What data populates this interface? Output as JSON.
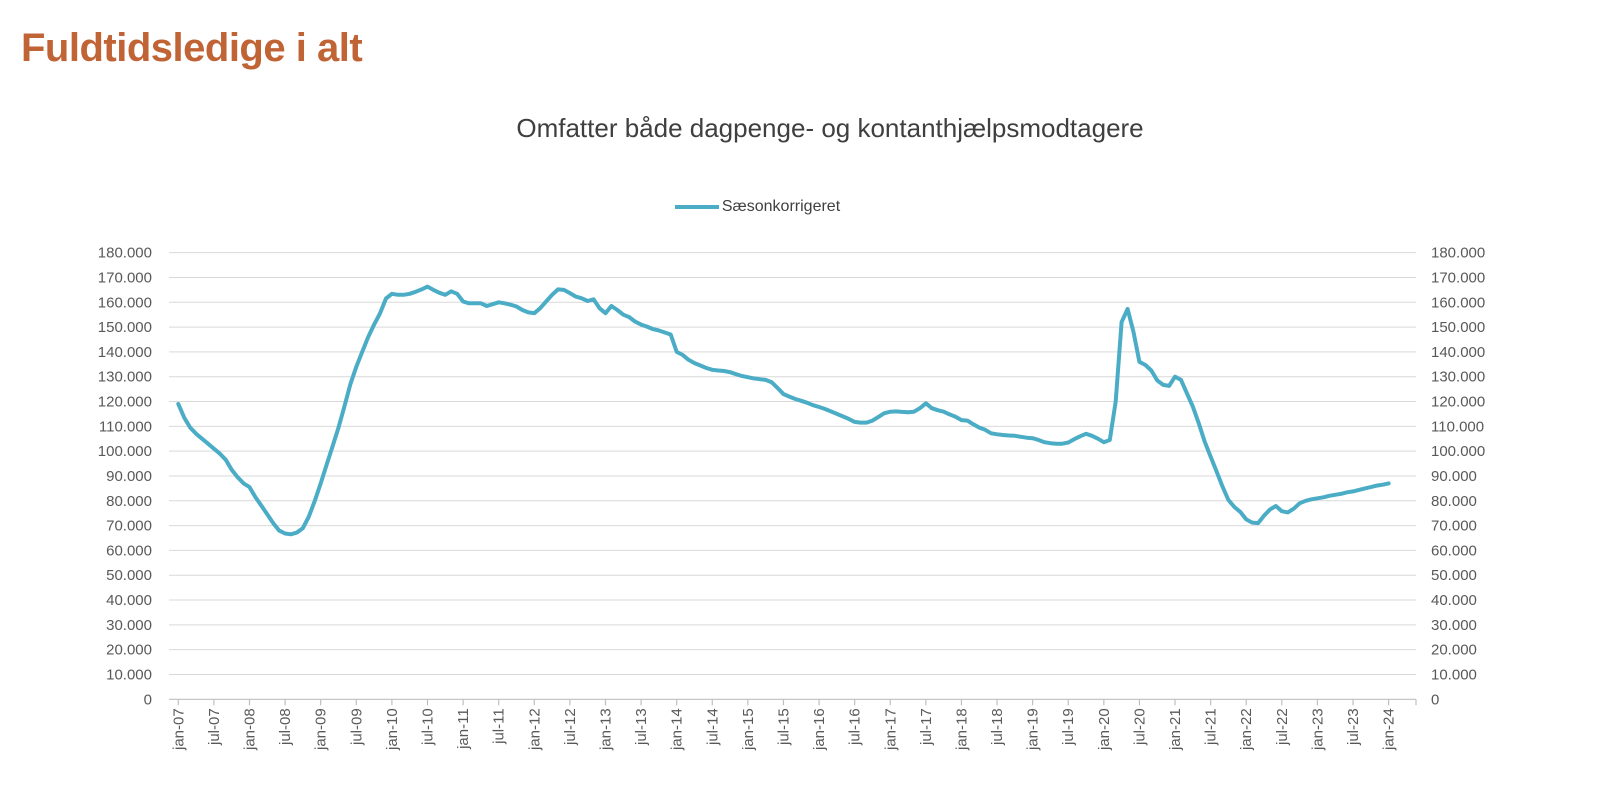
{
  "page": {
    "title": "Fuldtidsledige i alt"
  },
  "chart": {
    "subtitle": "Omfatter både dagpenge- og kontanthjælpsmodtagere",
    "legend": {
      "label": "Sæsonkorrigeret",
      "color": "#4BACC6"
    }
  },
  "chart_data": {
    "type": "line",
    "title": "Omfatter både dagpenge- og kontanthjælpsmodtagere",
    "legend_entries": [
      "Sæsonkorrigeret"
    ],
    "legend_position": "top-center",
    "grid": "horizontal",
    "line_color": "#4BACC6",
    "x_frequency": "monthly",
    "x_range": [
      "jan-07",
      "jan-24"
    ],
    "x_tick_interval_months": 6,
    "x_tick_labels": [
      "jan-07",
      "jul-07",
      "jan-08",
      "jul-08",
      "jan-09",
      "jul-09",
      "jan-10",
      "jul-10",
      "jan-11",
      "jul-11",
      "jan-12",
      "jul-12",
      "jan-13",
      "jul-13",
      "jan-14",
      "jul-14",
      "jan-15",
      "jul-15",
      "jan-16",
      "jul-16",
      "jan-17",
      "jul-17",
      "jan-18",
      "jul-18",
      "jan-19",
      "jul-19",
      "jan-20",
      "jul-20",
      "jan-21",
      "jul-21",
      "jan-22",
      "jul-22",
      "jan-23",
      "jul-23",
      "jan-24"
    ],
    "ylim": [
      0,
      180000
    ],
    "ytick_step": 10000,
    "ytick_labels_display": [
      "0",
      "10.000",
      "20.000",
      "30.000",
      "40.000",
      "50.000",
      "60.000",
      "70.000",
      "80.000",
      "90.000",
      "100.000",
      "110.000",
      "120.000",
      "130.000",
      "140.000",
      "150.000",
      "160.000",
      "170.000",
      "180.000"
    ],
    "y_axis_sides": [
      "left",
      "right"
    ],
    "series": [
      {
        "name": "Sæsonkorrigeret",
        "color": "#4BACC6",
        "values": [
          119000,
          113500,
          109500,
          107000,
          105000,
          103000,
          101000,
          99000,
          96500,
          92500,
          89500,
          87000,
          85500,
          81500,
          78000,
          74500,
          71000,
          68000,
          66800,
          66500,
          67200,
          69000,
          73600,
          80000,
          87000,
          94500,
          102000,
          109500,
          118000,
          127000,
          134000,
          140000,
          146000,
          151000,
          155500,
          161500,
          163400,
          163000,
          163000,
          163400,
          164200,
          165200,
          166300,
          165000,
          163800,
          163000,
          164400,
          163400,
          160300,
          159600,
          159600,
          159600,
          158500,
          159200,
          160000,
          159600,
          159000,
          158300,
          156900,
          155900,
          155600,
          157600,
          160300,
          163000,
          165200,
          165000,
          163700,
          162300,
          161600,
          160500,
          161200,
          157600,
          155600,
          158500,
          156900,
          155000,
          154000,
          152200,
          151000,
          150200,
          149200,
          148600,
          147800,
          147000,
          140000,
          138800,
          136800,
          135500,
          134500,
          133500,
          132800,
          132500,
          132300,
          131800,
          131000,
          130300,
          129800,
          129300,
          129000,
          128700,
          127800,
          125500,
          123000,
          122000,
          121000,
          120300,
          119500,
          118500,
          117800,
          117000,
          116000,
          115000,
          114000,
          113000,
          111800,
          111500,
          111500,
          112300,
          113800,
          115300,
          115900,
          116000,
          115800,
          115700,
          115900,
          117300,
          119300,
          117300,
          116500,
          115900,
          114800,
          113900,
          112500,
          112300,
          110800,
          109500,
          108600,
          107200,
          106800,
          106500,
          106300,
          106200,
          105800,
          105400,
          105200,
          104500,
          103600,
          103200,
          103000,
          103000,
          103500,
          104800,
          106000,
          107000,
          106200,
          105000,
          103600,
          104500,
          120000,
          152000,
          157300,
          148000,
          136000,
          134700,
          132500,
          128500,
          126700,
          126300,
          130000,
          128700,
          123300,
          118000,
          111200,
          103800,
          97800,
          91800,
          85700,
          80300,
          77500,
          75500,
          72500,
          71200,
          71000,
          74000,
          76500,
          77900,
          75800,
          75300,
          76800,
          79000,
          80000,
          80600,
          81000,
          81400,
          82000,
          82400,
          82800,
          83400,
          83800,
          84400,
          85000,
          85500,
          86100,
          86500,
          87000
        ]
      }
    ]
  }
}
